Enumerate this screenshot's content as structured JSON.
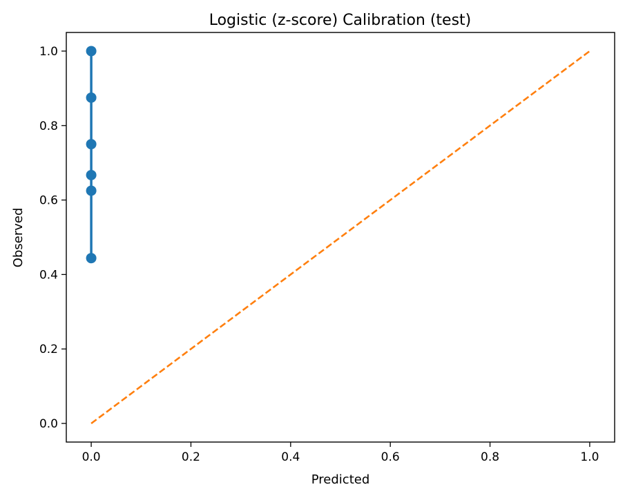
{
  "chart_data": {
    "type": "line",
    "title": "Logistic (z-score) Calibration (test)",
    "xlabel": "Predicted",
    "ylabel": "Observed",
    "xlim": [
      -0.05,
      1.05
    ],
    "ylim": [
      -0.05,
      1.05
    ],
    "xticks": [
      0.0,
      0.2,
      0.4,
      0.6,
      0.8,
      1.0
    ],
    "xtick_labels": [
      "0.0",
      "0.2",
      "0.4",
      "0.6",
      "0.8",
      "1.0"
    ],
    "yticks": [
      0.0,
      0.2,
      0.4,
      0.6,
      0.8,
      1.0
    ],
    "ytick_labels": [
      "0.0",
      "0.2",
      "0.4",
      "0.6",
      "0.8",
      "1.0"
    ],
    "grid": false,
    "legend": false,
    "series": [
      {
        "style": "solid line with circle markers",
        "color": "#1f77b4",
        "x": [
          0.0,
          0.0,
          0.0,
          0.0,
          0.0,
          0.0
        ],
        "y": [
          0.444,
          0.625,
          0.667,
          0.75,
          0.875,
          1.0
        ]
      },
      {
        "style": "dashed line",
        "color": "#ff7f0e",
        "x": [
          0.0,
          1.0
        ],
        "y": [
          0.0,
          1.0
        ]
      }
    ]
  }
}
